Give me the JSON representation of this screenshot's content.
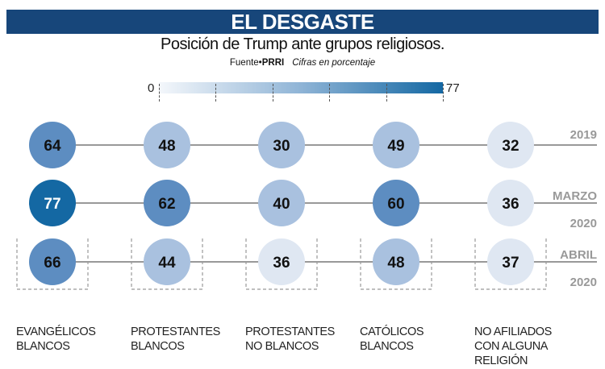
{
  "title": "EL DESGASTE",
  "subtitle": "Posición de Trump ante grupos religiosos.",
  "source_label": "Fuente•",
  "source_name": "PRRI",
  "note": "Cifras en porcentaje",
  "chart_data": {
    "type": "heatmap",
    "title": "EL DESGASTE",
    "subtitle": "Posición de Trump ante grupos religiosos.",
    "color_scale": {
      "min": 0,
      "max": 77,
      "min_label": "0",
      "max_label": "77",
      "low_color": "#f4f7fb",
      "high_color": "#1468a3"
    },
    "categories": [
      "EVANGÉLICOS BLANCOS",
      "PROTESTANTES BLANCOS",
      "PROTESTANTES NO BLANCOS",
      "CATÓLICOS BLANCOS",
      "NO AFILIADOS CON ALGUNA RELIGIÓN"
    ],
    "category_lines": [
      [
        "EVANGÉLICOS",
        "BLANCOS"
      ],
      [
        "PROTESTANTES",
        "BLANCOS"
      ],
      [
        "PROTESTANTES",
        "NO BLANCOS"
      ],
      [
        "CATÓLICOS",
        "BLANCOS"
      ],
      [
        "NO AFILIADOS",
        "CON ALGUNA",
        "RELIGIÓN"
      ]
    ],
    "series": [
      {
        "name": "2019",
        "label_lines": [
          "2019"
        ],
        "values": [
          64,
          48,
          30,
          49,
          32
        ],
        "colors": [
          "#5d8dc1",
          "#a9c1df",
          "#a9c1df",
          "#a9c1df",
          "#dfe7f2"
        ]
      },
      {
        "name": "MARZO 2020",
        "label_lines": [
          "MARZO",
          "2020"
        ],
        "values": [
          77,
          62,
          40,
          60,
          36
        ],
        "colors": [
          "#1468a3",
          "#5d8dc1",
          "#a9c1df",
          "#5d8dc1",
          "#dfe7f2"
        ]
      },
      {
        "name": "ABRIL 2020",
        "label_lines": [
          "ABRIL",
          "2020"
        ],
        "values": [
          66,
          44,
          36,
          48,
          37
        ],
        "colors": [
          "#5d8dc1",
          "#a9c1df",
          "#dfe7f2",
          "#a9c1df",
          "#dfe7f2"
        ]
      }
    ]
  }
}
